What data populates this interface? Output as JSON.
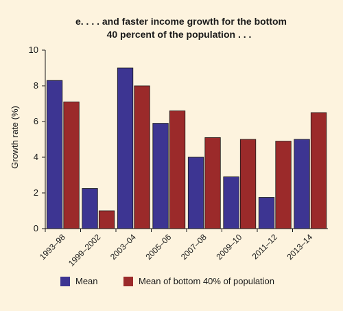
{
  "chart_data": {
    "type": "bar",
    "title_line1": "e.  . . . and faster income growth for the bottom",
    "title_line2": "40 percent of the population . . .",
    "ylabel": "Growth rate (%)",
    "xlabel": "",
    "ylim": [
      0,
      10
    ],
    "yticks": [
      0,
      2,
      4,
      6,
      8,
      10
    ],
    "categories": [
      "1993–98",
      "1999–2002",
      "2003–04",
      "2005–06",
      "2007–08",
      "2009–10",
      "2011–12",
      "2013–14"
    ],
    "series": [
      {
        "name": "Mean",
        "color": "#3d3592",
        "values": [
          8.3,
          2.25,
          9.0,
          5.9,
          4.0,
          2.9,
          1.75,
          5.0
        ]
      },
      {
        "name": "Mean of bottom 40% of population",
        "color": "#9b2a2a",
        "values": [
          7.1,
          1.0,
          8.0,
          6.6,
          5.1,
          5.0,
          4.9,
          6.5
        ]
      }
    ],
    "grid": false,
    "legend_position": "bottom"
  }
}
